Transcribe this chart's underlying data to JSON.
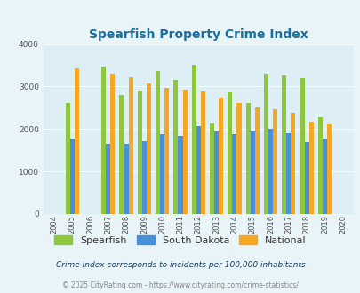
{
  "title": "Spearfish Property Crime Index",
  "years": [
    2004,
    2005,
    2006,
    2007,
    2008,
    2009,
    2010,
    2011,
    2012,
    2013,
    2014,
    2015,
    2016,
    2017,
    2018,
    2019,
    2020
  ],
  "spearfish": [
    0,
    2620,
    0,
    3470,
    2800,
    2900,
    3370,
    3160,
    3510,
    2120,
    2860,
    2610,
    3310,
    3260,
    3200,
    2270,
    0
  ],
  "south_dakota": [
    0,
    1770,
    0,
    1640,
    1640,
    1720,
    1880,
    1840,
    2060,
    1940,
    1870,
    1950,
    2000,
    1900,
    1700,
    1770,
    0
  ],
  "national": [
    0,
    3420,
    0,
    3290,
    3220,
    3060,
    2960,
    2930,
    2880,
    2740,
    2600,
    2500,
    2460,
    2390,
    2170,
    2100,
    0
  ],
  "spearfish_color": "#8dc63f",
  "sd_color": "#4a90d9",
  "national_color": "#f5a623",
  "bg_color": "#e8f4f8",
  "plot_bg": "#ddeef5",
  "title_color": "#1a6fa0",
  "subtitle_color": "#1a3a5c",
  "footer_color": "#888888",
  "grid_color": "#ffffff",
  "ylim": [
    0,
    4000
  ],
  "yticks": [
    0,
    1000,
    2000,
    3000,
    4000
  ],
  "subtitle": "Crime Index corresponds to incidents per 100,000 inhabitants",
  "footer": "© 2025 CityRating.com - https://www.cityrating.com/crime-statistics/",
  "bar_width": 0.25
}
